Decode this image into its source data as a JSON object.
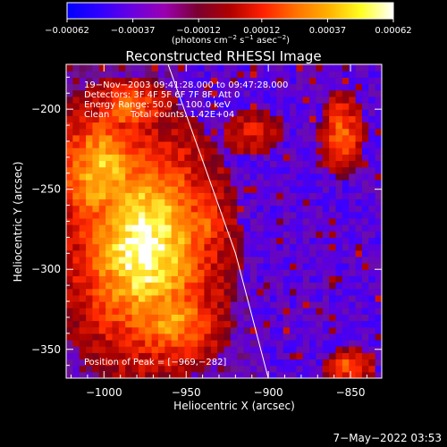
{
  "chart_data": {
    "type": "heatmap",
    "title": "Reconstructed RHESSI Image",
    "xlabel": "Heliocentric X (arcsec)",
    "ylabel": "Heliocentric Y (arcsec)",
    "xlim": [
      -1023,
      -831
    ],
    "ylim": [
      -368,
      -172
    ],
    "x_ticks": [
      {
        "value": -1000,
        "label": "−1000"
      },
      {
        "value": -950,
        "label": "−950"
      },
      {
        "value": -900,
        "label": "−900"
      },
      {
        "value": -850,
        "label": "−850"
      }
    ],
    "y_ticks": [
      {
        "value": -200,
        "label": "−200"
      },
      {
        "value": -250,
        "label": "−250"
      },
      {
        "value": -300,
        "label": "−300"
      },
      {
        "value": -350,
        "label": "−350"
      }
    ],
    "colorbar": {
      "min": -0.00062,
      "max": 0.00062,
      "tick_labels": [
        "−0.00062",
        "−0.00037",
        "−0.00012",
        "0.00012",
        "0.00037",
        "0.00062"
      ],
      "tick_values": [
        -0.00062,
        -0.00037,
        -0.00012,
        0.00012,
        0.00037,
        0.00062
      ],
      "units_prefix": "(photons cm",
      "units_exp1": "−2",
      "units_mid": " s",
      "units_exp2": "−1",
      "units_mid2": " asec",
      "units_exp3": "−2",
      "units_suffix": ")",
      "colors": [
        "#0000ff",
        "#3000ff",
        "#6a00e0",
        "#9a00b0",
        "#7a0030",
        "#b00000",
        "#ff2000",
        "#ff7000",
        "#ffb000",
        "#ffff20",
        "#ffffff"
      ]
    },
    "annotations": {
      "time_range": "19−Nov−2003 09:41:28.000 to 09:47:28.000",
      "detectors": "Detectors: 3F 4F 5F 6F 7F 8F, Att 0",
      "energy_range": "Energy Range: 50.0 − 100.0 keV",
      "clean": "Clean",
      "total_counts": "Total counts: 1.42E+04",
      "peak": "Position of Peak = [−969,−282]"
    },
    "peak_position": [
      -969,
      -282
    ],
    "limb_curve": [
      [
        -961,
        -172
      ],
      [
        -940,
        -232
      ],
      [
        -920,
        -290
      ],
      [
        -900,
        -368
      ]
    ],
    "source_blobs": [
      {
        "x": -975,
        "y": -285,
        "rx": 35,
        "ry": 55,
        "level": 1.0
      },
      {
        "x": -1000,
        "y": -240,
        "rx": 25,
        "ry": 35,
        "level": 0.8
      },
      {
        "x": -960,
        "y": -330,
        "rx": 25,
        "ry": 25,
        "level": 0.7
      },
      {
        "x": -940,
        "y": -270,
        "rx": 12,
        "ry": 15,
        "level": 0.6
      },
      {
        "x": -985,
        "y": -200,
        "rx": 20,
        "ry": 15,
        "level": 0.55
      },
      {
        "x": -855,
        "y": -215,
        "rx": 10,
        "ry": 20,
        "level": 0.5
      },
      {
        "x": -850,
        "y": -360,
        "rx": 12,
        "ry": 8,
        "level": 0.5
      },
      {
        "x": -910,
        "y": -215,
        "rx": 15,
        "ry": 12,
        "level": 0.3
      }
    ]
  },
  "footer": {
    "timestamp": "7−May−2022 03:53"
  }
}
